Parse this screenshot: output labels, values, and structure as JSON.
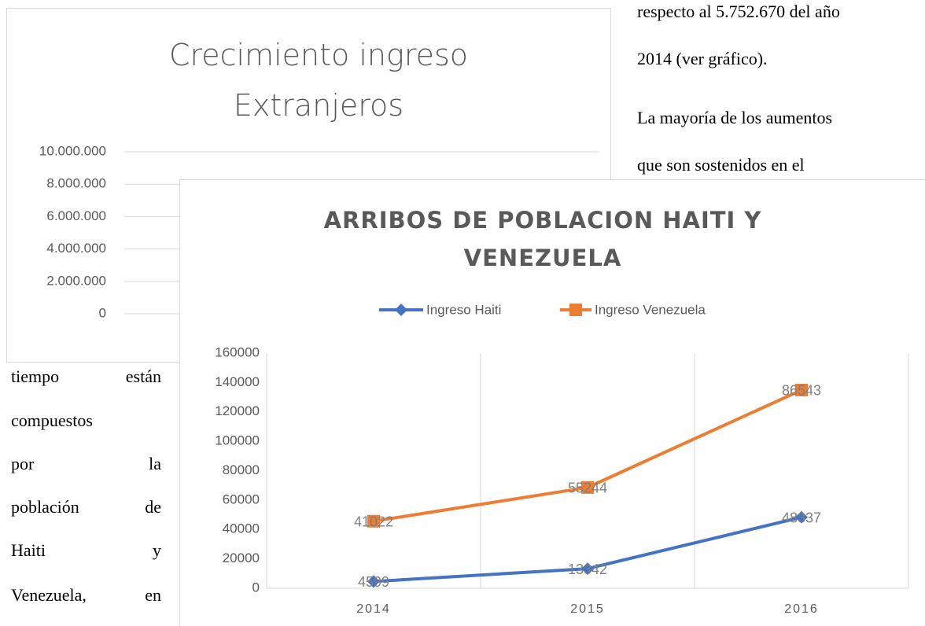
{
  "chart_data": [
    {
      "type": "line",
      "title": "Crecimiento ingreso Extranjeros",
      "ylim": [
        0,
        10000000
      ],
      "yticks": [
        0,
        {
          "value": 2000000,
          "label": "2.000.000"
        },
        {
          "value": 4000000,
          "label": "4.000.000"
        },
        {
          "value": 6000000,
          "label": "6.000.000"
        },
        {
          "value": 8000000,
          "label": "8.000.000"
        },
        {
          "value": 10000000,
          "label": "10.000.000"
        }
      ],
      "grid": true
    },
    {
      "type": "line",
      "title": "ARRIBOS DE POBLACION HAITI Y VENEZUELA",
      "stacked": true,
      "categories": [
        "2014",
        "2015",
        "2016"
      ],
      "series": [
        {
          "name": "Ingreso Haiti",
          "color": "#4472c4",
          "marker": "diamond",
          "values": [
            4599,
            13342,
            48337
          ]
        },
        {
          "name": "Ingreso Venezuela",
          "color": "#ed7d31",
          "marker": "square",
          "values": [
            41022,
            55244,
            86543
          ]
        }
      ],
      "ylim": [
        0,
        160000
      ],
      "yticks": [
        0,
        20000,
        40000,
        60000,
        80000,
        100000,
        120000,
        140000,
        160000
      ],
      "legend": "top"
    }
  ],
  "text": {
    "right": [
      "respecto al 5.752.670 del año",
      "2014 (ver gráfico).",
      "La mayoría de los aumentos",
      "que son sostenidos en el"
    ],
    "left": [
      "tiempo están",
      "compuestos",
      "por la",
      "población de",
      "Haiti y",
      "Venezuela, en"
    ]
  }
}
